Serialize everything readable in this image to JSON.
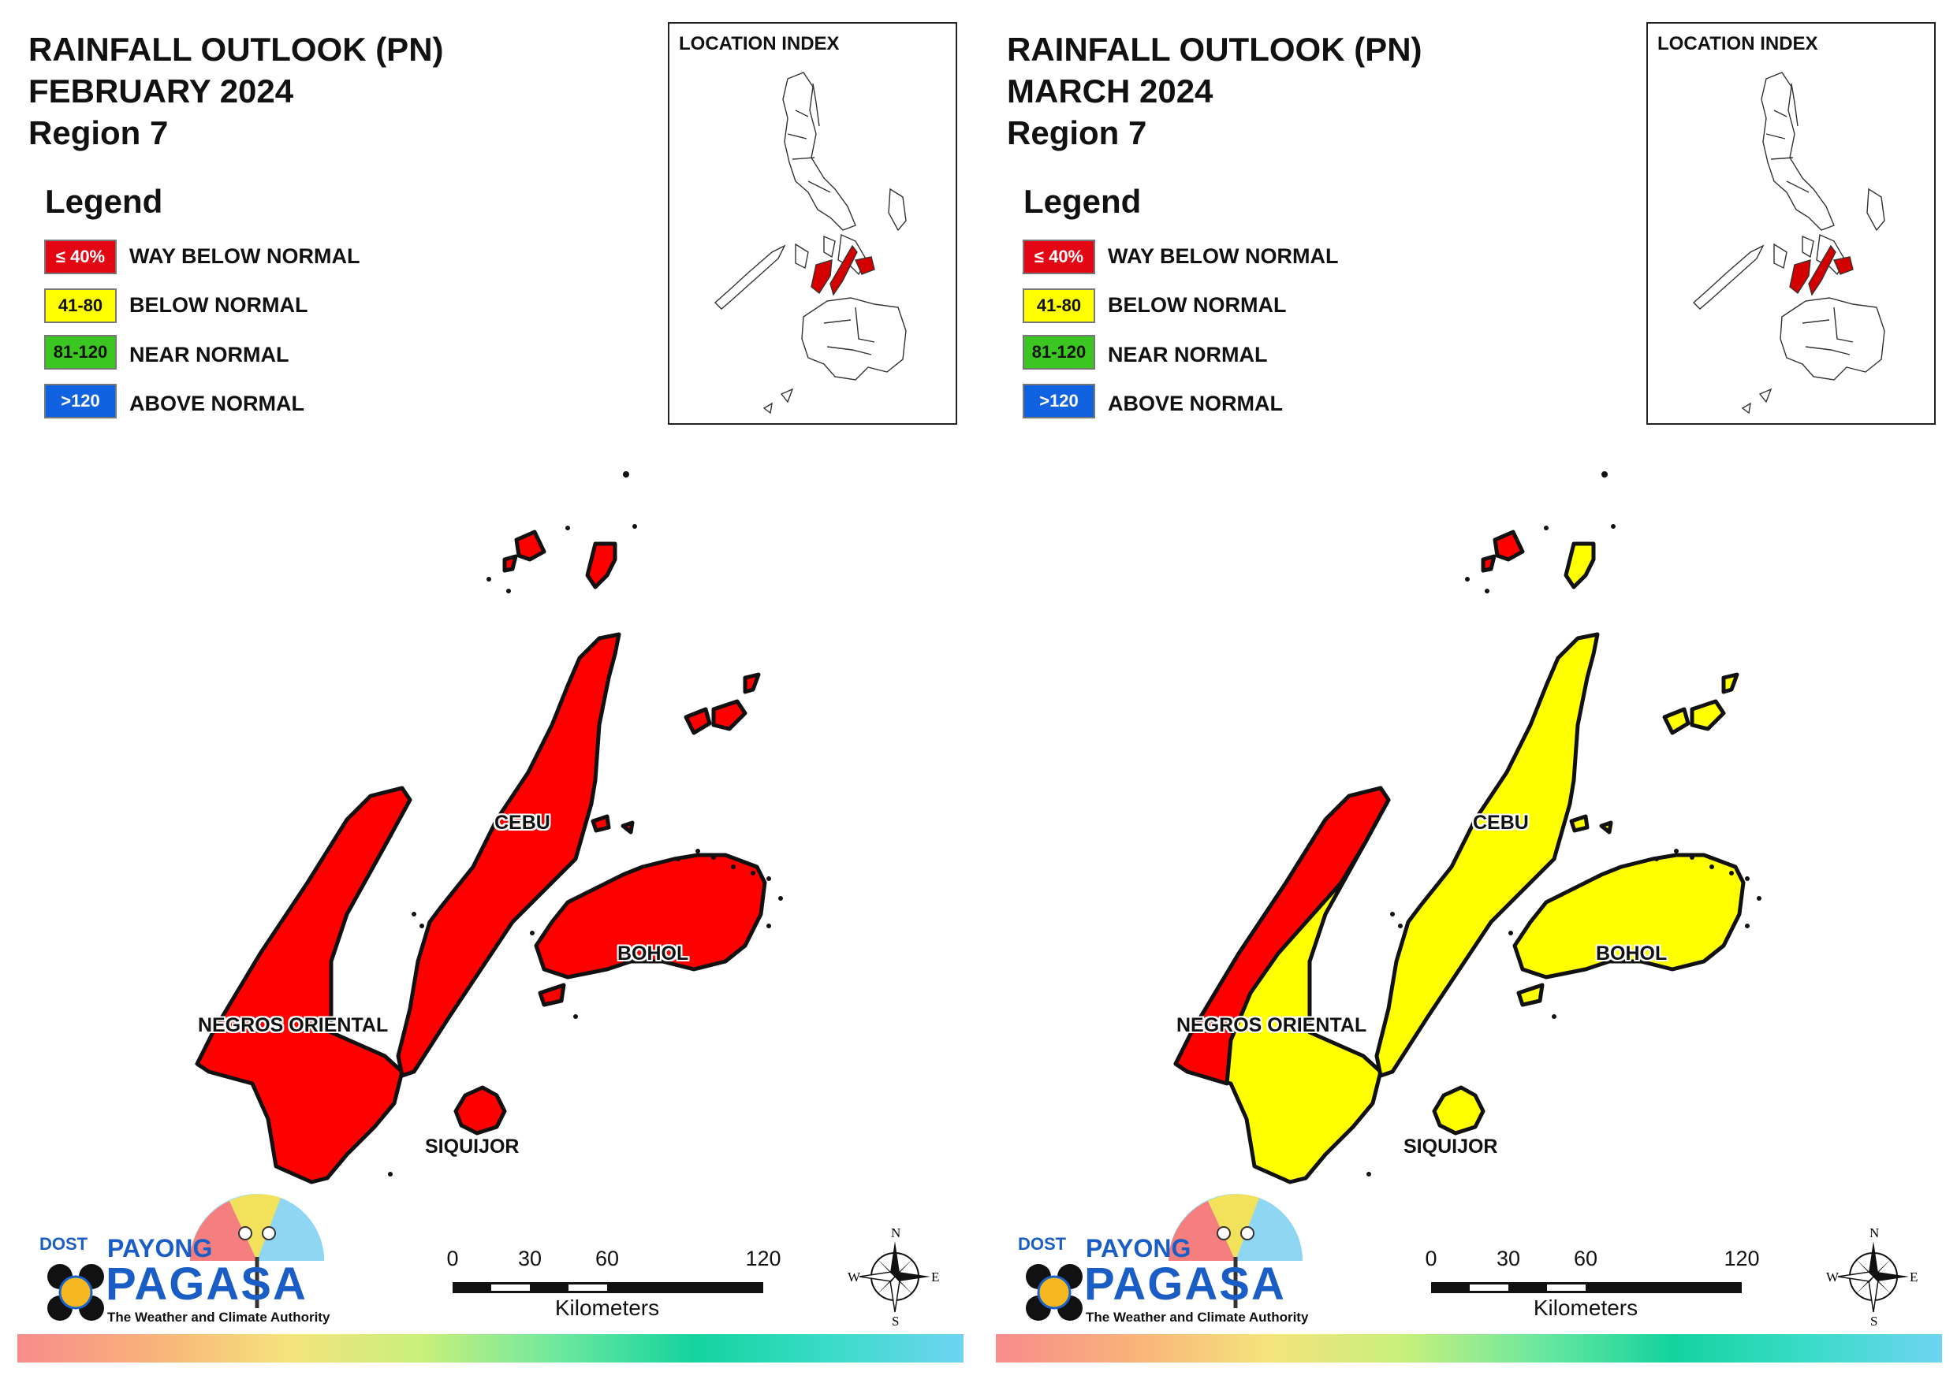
{
  "panels": [
    {
      "title_line1": "RAINFALL OUTLOOK (PN)",
      "title_line2": "FEBRUARY 2024",
      "title_line3": "Region 7",
      "fills": {
        "negros": "#ff0000",
        "cebu": "#ff0000",
        "bohol": "#ff0000",
        "siquijor": "#ff0000",
        "islands": "#ff0000"
      },
      "negros_split": false
    },
    {
      "title_line1": "RAINFALL OUTLOOK (PN)",
      "title_line2": "MARCH 2024",
      "title_line3": "Region 7",
      "fills": {
        "negros": "#ffff00",
        "cebu": "#ffff00",
        "bohol": "#ffff00",
        "siquijor": "#ffff00",
        "islands": "#ffff00"
      },
      "negros_split": true
    }
  ],
  "legend": {
    "heading": "Legend",
    "items": [
      {
        "range": "≤ 40%",
        "label": "WAY BELOW NORMAL",
        "color": "#e30613",
        "text_color": "#ffffff"
      },
      {
        "range": "41-80",
        "label": "BELOW NORMAL",
        "color": "#ffff00",
        "text_color": "#111111"
      },
      {
        "range": "81-120",
        "label": "NEAR NORMAL",
        "color": "#3cc621",
        "text_color": "#111111"
      },
      {
        "range": ">120",
        "label": "ABOVE NORMAL",
        "color": "#1062e0",
        "text_color": "#ffffff"
      }
    ]
  },
  "location_index": {
    "title": "LOCATION INDEX",
    "highlight_color": "#d40000"
  },
  "places": {
    "cebu": "CEBU",
    "bohol": "BOHOL",
    "negros": "NEGROS ORIENTAL",
    "siquijor": "SIQUIJOR"
  },
  "scale": {
    "ticks": [
      "0",
      "30",
      "60",
      "120"
    ],
    "unit": "Kilometers"
  },
  "compass": {
    "n": "N",
    "s": "S",
    "e": "E",
    "w": "W"
  },
  "logo": {
    "dost": "DOST",
    "payong": "PAYONG",
    "pagasa": "PAGASA",
    "tagline": "The Weather and Climate Authority"
  },
  "map_outline_color": "#111111"
}
